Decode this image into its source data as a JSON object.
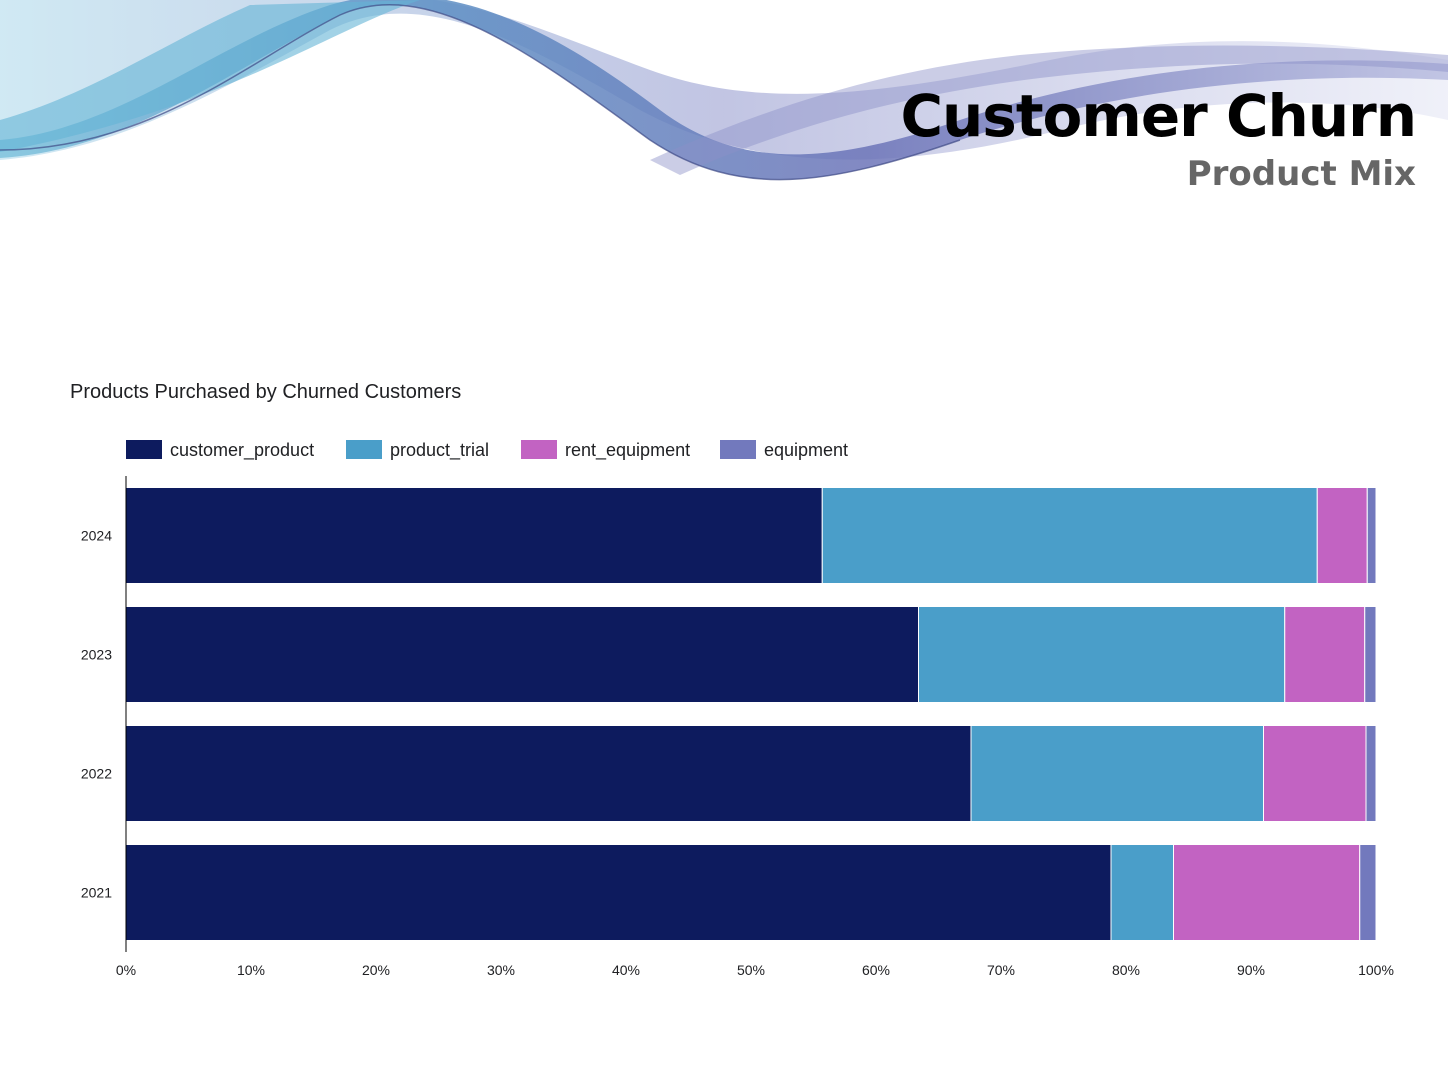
{
  "header": {
    "title": "Customer Churn",
    "subtitle": "Product Mix"
  },
  "colors": {
    "customer_product": "#0d1b5e",
    "product_trial": "#4a9ec9",
    "rent_equipment": "#c263c2",
    "equipment": "#7279bd"
  },
  "chart_data": {
    "type": "bar",
    "orientation": "horizontal",
    "stacked": "percent",
    "title": "Products Purchased by Churned Customers",
    "xlabel": "",
    "ylabel": "",
    "categories": [
      "2024",
      "2023",
      "2022",
      "2021"
    ],
    "series": [
      {
        "name": "customer_product",
        "values": [
          55.7,
          63.4,
          67.6,
          78.8
        ]
      },
      {
        "name": "product_trial",
        "values": [
          39.6,
          29.3,
          23.4,
          5.0
        ]
      },
      {
        "name": "rent_equipment",
        "values": [
          4.0,
          6.4,
          8.2,
          14.9
        ]
      },
      {
        "name": "equipment",
        "values": [
          0.7,
          0.9,
          0.8,
          1.3
        ]
      }
    ],
    "xlim": [
      0,
      100
    ],
    "x_ticks": [
      "0%",
      "10%",
      "20%",
      "30%",
      "40%",
      "50%",
      "60%",
      "70%",
      "80%",
      "90%",
      "100%"
    ],
    "legend_position": "top",
    "grid": false
  }
}
